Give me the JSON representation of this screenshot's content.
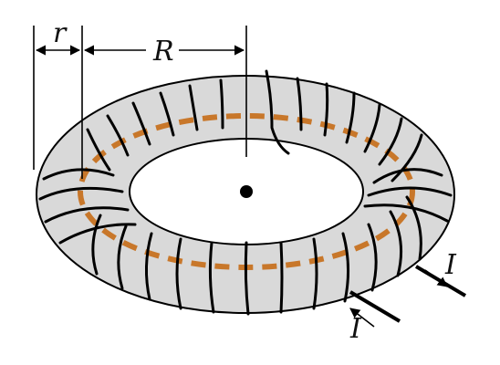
{
  "labels": {
    "minor_radius": "r",
    "major_radius": "R",
    "current_in": "I",
    "current_out": "I"
  },
  "colors": {
    "torus_fill": "#d9d9d9",
    "core_path": "#c8772a",
    "wire": "#000000",
    "background": "#ffffff"
  }
}
